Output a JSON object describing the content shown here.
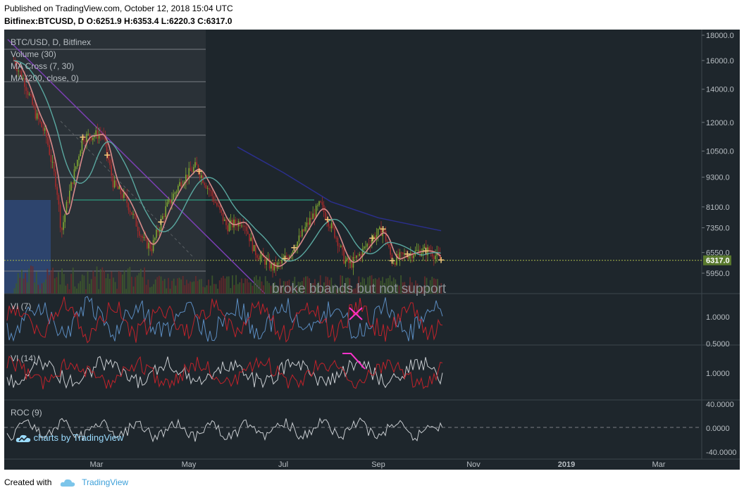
{
  "header": {
    "published": "Published on TradingView.com, October 12, 2018 15:04 UTC",
    "symbol_line": "Bitfinex:BTCUSD, D  O:6251.9 H:6353.4 L:6220.3 C:6317.0"
  },
  "legend": {
    "title": "BTC/USD, D, Bitfinex",
    "volume": "Volume (30)",
    "ma_cross": "MA Cross (7, 30)",
    "ma200": "MA (200, close, 0)",
    "vi7": "VI (7)",
    "vi14": "VI (14)",
    "roc": "ROC (9)"
  },
  "annotation": "broke bbands but not support",
  "watermark": "charts by TradingView",
  "footer": {
    "created_with": "Created with",
    "brand": "TradingView"
  },
  "colors": {
    "background": "#1e262c",
    "price_axis_label": "#5a7a2e",
    "candles_up": "#7fa632",
    "candles_down": "#a52a2a",
    "ma_fast": "#d98b8b",
    "ma_slow": "#5aa8a0",
    "ma200": "#2b2f8c",
    "vi_plus": "#5b8cc0",
    "vi_minus": "#c0222a",
    "highlight": "#ff33cc"
  },
  "chart_data": [
    {
      "type": "line",
      "title": "BTC/USD, D, Bitfinex",
      "scale": "log",
      "last_price_label": "6317.0",
      "ohlc": {
        "open": 6251.9,
        "high": 6353.4,
        "low": 6220.3,
        "close": 6317.0
      },
      "y_ticks": [
        "18000.0",
        "16000.0",
        "14000.0",
        "12000.0",
        "10500.0",
        "9300.0",
        "8100.0",
        "7350.0",
        "6550.0",
        "5950.0"
      ],
      "x_ticks": [
        "Mar",
        "May",
        "Jul",
        "Sep",
        "Nov",
        "2019",
        "Mar"
      ],
      "series": [
        {
          "name": "Close",
          "dates": [
            "2018-01-06",
            "2018-01-13",
            "2018-01-20",
            "2018-01-27",
            "2018-02-03",
            "2018-02-06",
            "2018-02-10",
            "2018-02-20",
            "2018-03-05",
            "2018-03-12",
            "2018-03-20",
            "2018-04-01",
            "2018-04-06",
            "2018-04-15",
            "2018-04-25",
            "2018-05-05",
            "2018-05-15",
            "2018-05-25",
            "2018-06-05",
            "2018-06-12",
            "2018-06-24",
            "2018-06-29",
            "2018-07-08",
            "2018-07-16",
            "2018-07-25",
            "2018-08-05",
            "2018-08-10",
            "2018-08-14",
            "2018-08-20",
            "2018-08-28",
            "2018-09-04",
            "2018-09-10",
            "2018-09-20",
            "2018-09-28",
            "2018-10-05",
            "2018-10-12"
          ],
          "values": [
            16000,
            14500,
            12500,
            11300,
            8900,
            7200,
            8300,
            11200,
            11400,
            9000,
            8400,
            6900,
            6700,
            8000,
            9100,
            9800,
            8600,
            7400,
            7600,
            6600,
            6100,
            6200,
            6700,
            7400,
            8200,
            7000,
            6300,
            6200,
            6500,
            7000,
            7300,
            6300,
            6500,
            6600,
            6600,
            6317
          ]
        },
        {
          "name": "MA (200, close, 0)",
          "dates": [
            "2018-06-01",
            "2018-07-01",
            "2018-08-01",
            "2018-09-01",
            "2018-10-12"
          ],
          "values": [
            10700,
            9500,
            8300,
            7700,
            7250
          ]
        }
      ]
    },
    {
      "type": "line",
      "title": "VI (7)",
      "y_ticks": [
        "1.0000",
        "0.5000"
      ]
    },
    {
      "type": "line",
      "title": "VI (14)",
      "y_ticks": [
        "1.0000"
      ]
    },
    {
      "type": "line",
      "title": "ROC (9)",
      "y_ticks": [
        "40.0000",
        "0.0000",
        "-40.0000"
      ]
    }
  ]
}
